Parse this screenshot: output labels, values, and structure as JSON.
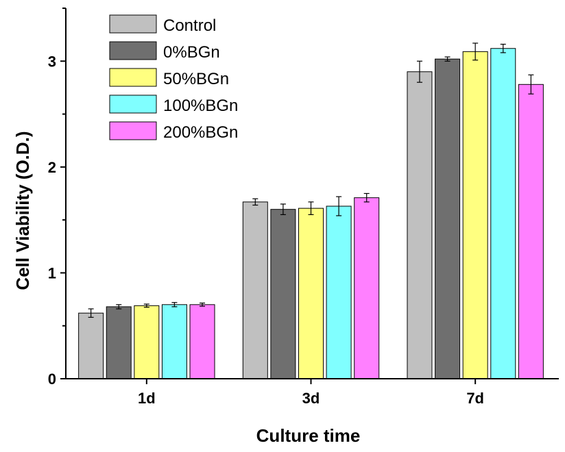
{
  "chart_data": {
    "type": "bar",
    "title": "",
    "xlabel": "Culture time",
    "ylabel": "Cell Viability (O.D.)",
    "ylim": [
      0,
      3.5
    ],
    "yticks": [
      0,
      1,
      2,
      3
    ],
    "categories": [
      "1d",
      "3d",
      "7d"
    ],
    "legend_position": "top-left",
    "series": [
      {
        "name": "Control",
        "color": "#c0c0c0",
        "values": [
          0.62,
          1.67,
          2.9
        ],
        "errors": [
          0.04,
          0.03,
          0.1
        ]
      },
      {
        "name": "0%BGn",
        "color": "#6f6f6f",
        "values": [
          0.68,
          1.6,
          3.02
        ],
        "errors": [
          0.02,
          0.05,
          0.02
        ]
      },
      {
        "name": "50%BGn",
        "color": "#ffff80",
        "values": [
          0.69,
          1.61,
          3.09
        ],
        "errors": [
          0.015,
          0.06,
          0.08
        ]
      },
      {
        "name": "100%BGn",
        "color": "#80ffff",
        "values": [
          0.7,
          1.63,
          3.12
        ],
        "errors": [
          0.02,
          0.09,
          0.04
        ]
      },
      {
        "name": "200%BGn",
        "color": "#ff80ff",
        "values": [
          0.7,
          1.71,
          2.78
        ],
        "errors": [
          0.015,
          0.04,
          0.09
        ]
      }
    ]
  }
}
